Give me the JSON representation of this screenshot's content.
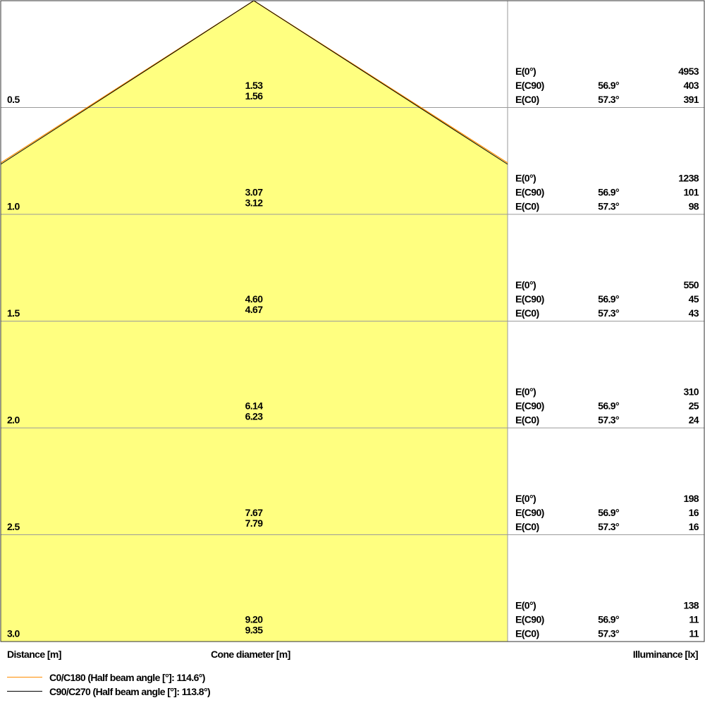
{
  "chart_data": {
    "type": "diagram",
    "rows": [
      {
        "distance": "0.5",
        "cone_c0": "1.53",
        "cone_c90": "1.56",
        "e0": "4953",
        "e_c90_angle": "56.9°",
        "e_c90": "403",
        "e_c0_angle": "57.3°",
        "e_c0": "391"
      },
      {
        "distance": "1.0",
        "cone_c0": "3.07",
        "cone_c90": "3.12",
        "e0": "1238",
        "e_c90_angle": "56.9°",
        "e_c90": "101",
        "e_c0_angle": "57.3°",
        "e_c0": "98"
      },
      {
        "distance": "1.5",
        "cone_c0": "4.60",
        "cone_c90": "4.67",
        "e0": "550",
        "e_c90_angle": "56.9°",
        "e_c90": "45",
        "e_c0_angle": "57.3°",
        "e_c0": "43"
      },
      {
        "distance": "2.0",
        "cone_c0": "6.14",
        "cone_c90": "6.23",
        "e0": "310",
        "e_c90_angle": "56.9°",
        "e_c90": "25",
        "e_c0_angle": "57.3°",
        "e_c0": "24"
      },
      {
        "distance": "2.5",
        "cone_c0": "7.67",
        "cone_c90": "7.79",
        "e0": "198",
        "e_c90_angle": "56.9°",
        "e_c90": "16",
        "e_c0_angle": "57.3°",
        "e_c0": "16"
      },
      {
        "distance": "3.0",
        "cone_c0": "9.20",
        "cone_c90": "9.35",
        "e0": "138",
        "e_c90_angle": "56.9°",
        "e_c90": "11",
        "e_c0_angle": "57.3°",
        "e_c0": "11"
      }
    ],
    "row_labels": {
      "e0": "E(0°)",
      "e_c90": "E(C90)",
      "e_c0": "E(C0)"
    },
    "footer": {
      "distance": "Distance [m]",
      "cone": "Cone diameter [m]",
      "illuminance": "Illuminance [lx]"
    },
    "legend": [
      {
        "label": "C0/C180 (Half beam angle [°]: 114.6°)",
        "color": "#FF8C00"
      },
      {
        "label": "C90/C270 (Half beam angle [°]: 113.8°)",
        "color": "#000000"
      }
    ],
    "cone_fill": "#FFFF80"
  }
}
